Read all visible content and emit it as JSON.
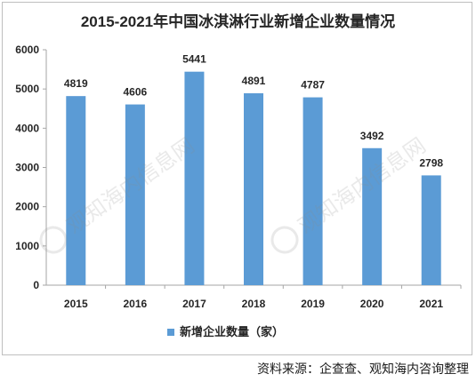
{
  "chart_data": {
    "type": "bar",
    "title": "2015-2021年中国冰淇淋行业新增企业数量情况",
    "categories": [
      "2015",
      "2016",
      "2017",
      "2018",
      "2019",
      "2020",
      "2021"
    ],
    "series": [
      {
        "name": "新增企业数量（家）",
        "values": [
          4819,
          4606,
          5441,
          4891,
          4787,
          3492,
          2798
        ]
      }
    ],
    "data_labels": [
      "4819",
      "4606",
      "5441",
      "4891",
      "4787",
      "3492",
      "2798"
    ],
    "ylim": [
      0,
      6000
    ],
    "yticks": [
      0,
      1000,
      2000,
      3000,
      4000,
      5000,
      6000
    ],
    "grid": false,
    "legend_position": "bottom",
    "bar_color": "#5b9bd5"
  },
  "source": "资料来源：企查查、观知海内咨询整理",
  "watermark": "观知海内信息网 www.gonyn.com"
}
